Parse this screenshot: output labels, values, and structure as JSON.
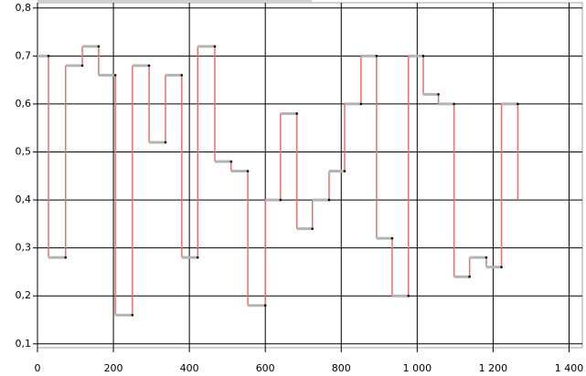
{
  "chart_data": {
    "type": "step",
    "x": [
      0,
      29,
      74,
      118,
      161,
      205,
      250,
      294,
      337,
      380,
      422,
      467,
      510,
      554,
      600,
      640,
      683,
      724,
      768,
      809,
      852,
      893,
      934,
      977,
      1016,
      1056,
      1097,
      1138,
      1182,
      1222,
      1265
    ],
    "values": [
      0.7,
      0.28,
      0.68,
      0.72,
      0.66,
      0.16,
      0.68,
      0.52,
      0.66,
      0.28,
      0.72,
      0.48,
      0.46,
      0.18,
      0.4,
      0.58,
      0.34,
      0.4,
      0.46,
      0.6,
      0.7,
      0.32,
      0.2,
      0.7,
      0.62,
      0.6,
      0.24,
      0.28,
      0.26,
      0.6,
      0.4
    ],
    "step_color": "#b4b4b4",
    "riser_color": "#e87070",
    "point_color": "#000000",
    "xlim": [
      0,
      1435
    ],
    "ylim": [
      0.092,
      0.811
    ],
    "xticks": [
      0,
      200,
      400,
      600,
      800,
      {
        "value": 1000,
        "label": "1 000"
      },
      {
        "value": 1200,
        "label": "1 200"
      },
      {
        "value": 1400,
        "label": "1 400"
      }
    ],
    "yticks": [
      {
        "value": 0.1,
        "label": "0,1"
      },
      {
        "value": 0.2,
        "label": "0,2"
      },
      {
        "value": 0.3,
        "label": "0,3"
      },
      {
        "value": 0.4,
        "label": "0,4"
      },
      {
        "value": 0.5,
        "label": "0,5"
      },
      {
        "value": 0.6,
        "label": "0,6"
      },
      {
        "value": 0.7,
        "label": "0,7"
      },
      {
        "value": 0.8,
        "label": "0,8"
      }
    ],
    "grid": true
  }
}
